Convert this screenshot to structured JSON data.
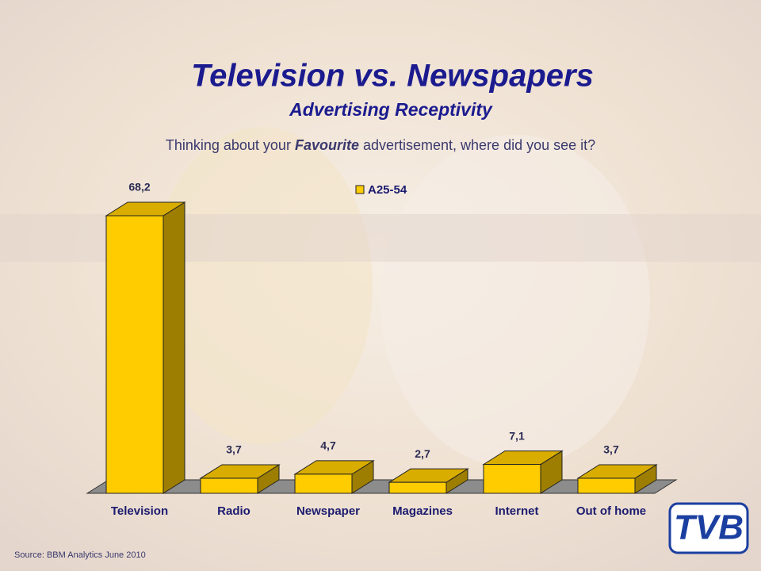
{
  "chart_data": {
    "type": "bar",
    "title": "Television vs. Newspapers",
    "subtitle": "Advertising Receptivity",
    "question": [
      "Thinking about your ",
      "Favourite",
      " advertisement, where did you see it?"
    ],
    "categories": [
      "Television",
      "Radio",
      "Newspaper",
      "Magazines",
      "Internet",
      "Out of home"
    ],
    "series": [
      {
        "name": "A25-54",
        "color": "#ffcc00",
        "values": [
          68.2,
          3.7,
          4.7,
          2.7,
          7.1,
          3.7
        ],
        "value_labels": [
          "68,2",
          "3,7",
          "4,7",
          "2,7",
          "7,1",
          "3,7"
        ]
      }
    ],
    "source": "Source: BBM Analytics June 2010",
    "logo": "TVB"
  }
}
